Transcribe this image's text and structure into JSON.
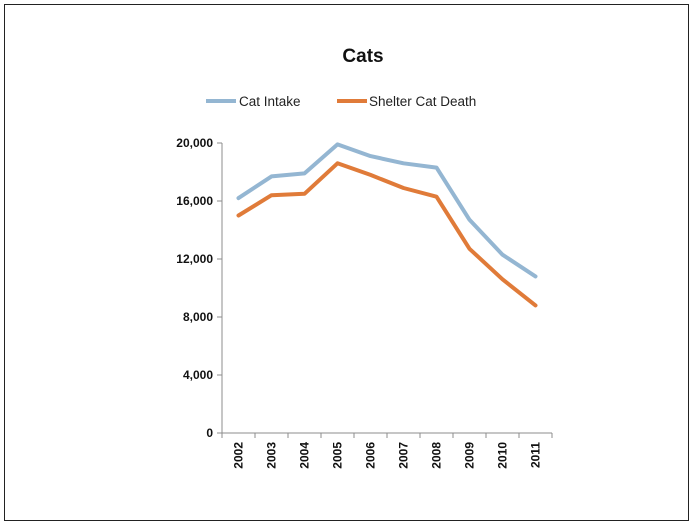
{
  "chart_data": {
    "type": "line",
    "title": "Cats",
    "xlabel": "",
    "ylabel": "",
    "categories": [
      "2002",
      "2003",
      "2004",
      "2005",
      "2006",
      "2007",
      "2008",
      "2009",
      "2010",
      "2011"
    ],
    "series": [
      {
        "name": "Cat Intake",
        "color": "#94b6d2",
        "values": [
          16200,
          17700,
          17900,
          19900,
          19100,
          18600,
          18300,
          14700,
          12300,
          10800
        ]
      },
      {
        "name": "Shelter Cat Death",
        "color": "#e07b39",
        "values": [
          15000,
          16400,
          16500,
          18600,
          17800,
          16900,
          16300,
          12700,
          10600,
          8800
        ]
      }
    ],
    "ylim": [
      0,
      20000
    ],
    "yticks": [
      0,
      4000,
      8000,
      12000,
      16000,
      20000
    ],
    "ytick_labels": [
      "0",
      "4,000",
      "8,000",
      "12,000",
      "16,000",
      "20,000"
    ],
    "grid": false,
    "legend_position": "top"
  }
}
